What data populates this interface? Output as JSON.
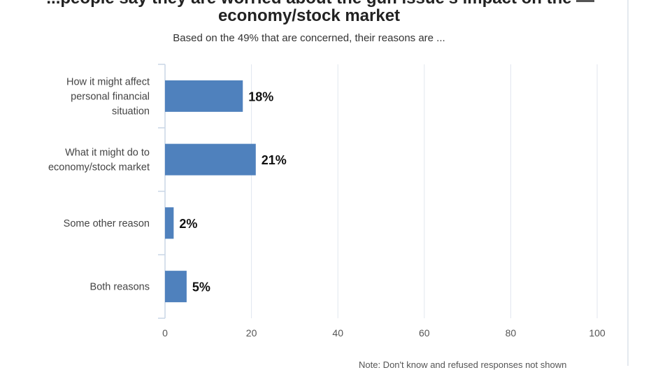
{
  "title_line1": "...people say they are worried about the gun issue's impact on the",
  "title_line2": "economy/stock market",
  "subtitle": "Based on the 49% that are concerned, their reasons are ...",
  "note": "Note: Don't know and refused responses not shown",
  "icons": {
    "menu": "hamburger-menu-icon"
  },
  "colors": {
    "bar": "#4f81bd",
    "grid": "#e0e6ee",
    "axis": "#c9d6e6"
  },
  "chart_data": {
    "type": "bar",
    "orientation": "horizontal",
    "categories": [
      [
        "How it might affect",
        "personal financial",
        "situation"
      ],
      [
        "What it might do to",
        "economy/stock market"
      ],
      [
        "Some other reason"
      ],
      [
        "Both reasons"
      ]
    ],
    "values": [
      18,
      21,
      2,
      5
    ],
    "data_labels": [
      "18%",
      "21%",
      "2%",
      "5%"
    ],
    "xlim": [
      0,
      100
    ],
    "x_ticks": [
      0,
      20,
      40,
      60,
      80,
      100
    ],
    "grid": true,
    "legend": "none"
  }
}
